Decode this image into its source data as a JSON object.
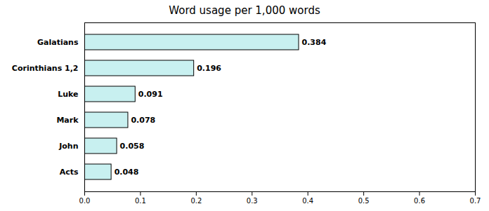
{
  "chart_data": {
    "type": "bar",
    "title": "Word usage per 1,000 words",
    "orientation": "horizontal",
    "categories": [
      "Galatians",
      "Corinthians 1,2",
      "Luke",
      "Mark",
      "John",
      "Acts"
    ],
    "values": [
      0.384,
      0.196,
      0.091,
      0.078,
      0.058,
      0.048
    ],
    "color": "#c8f0f0",
    "xlim": [
      0.0,
      0.7
    ],
    "xticks": [
      {
        "value": 0,
        "label": "0.0"
      },
      0.1,
      0.2,
      0.3,
      0.4,
      0.5,
      0.6,
      0.7
    ],
    "grid": false,
    "data_labels": true
  }
}
